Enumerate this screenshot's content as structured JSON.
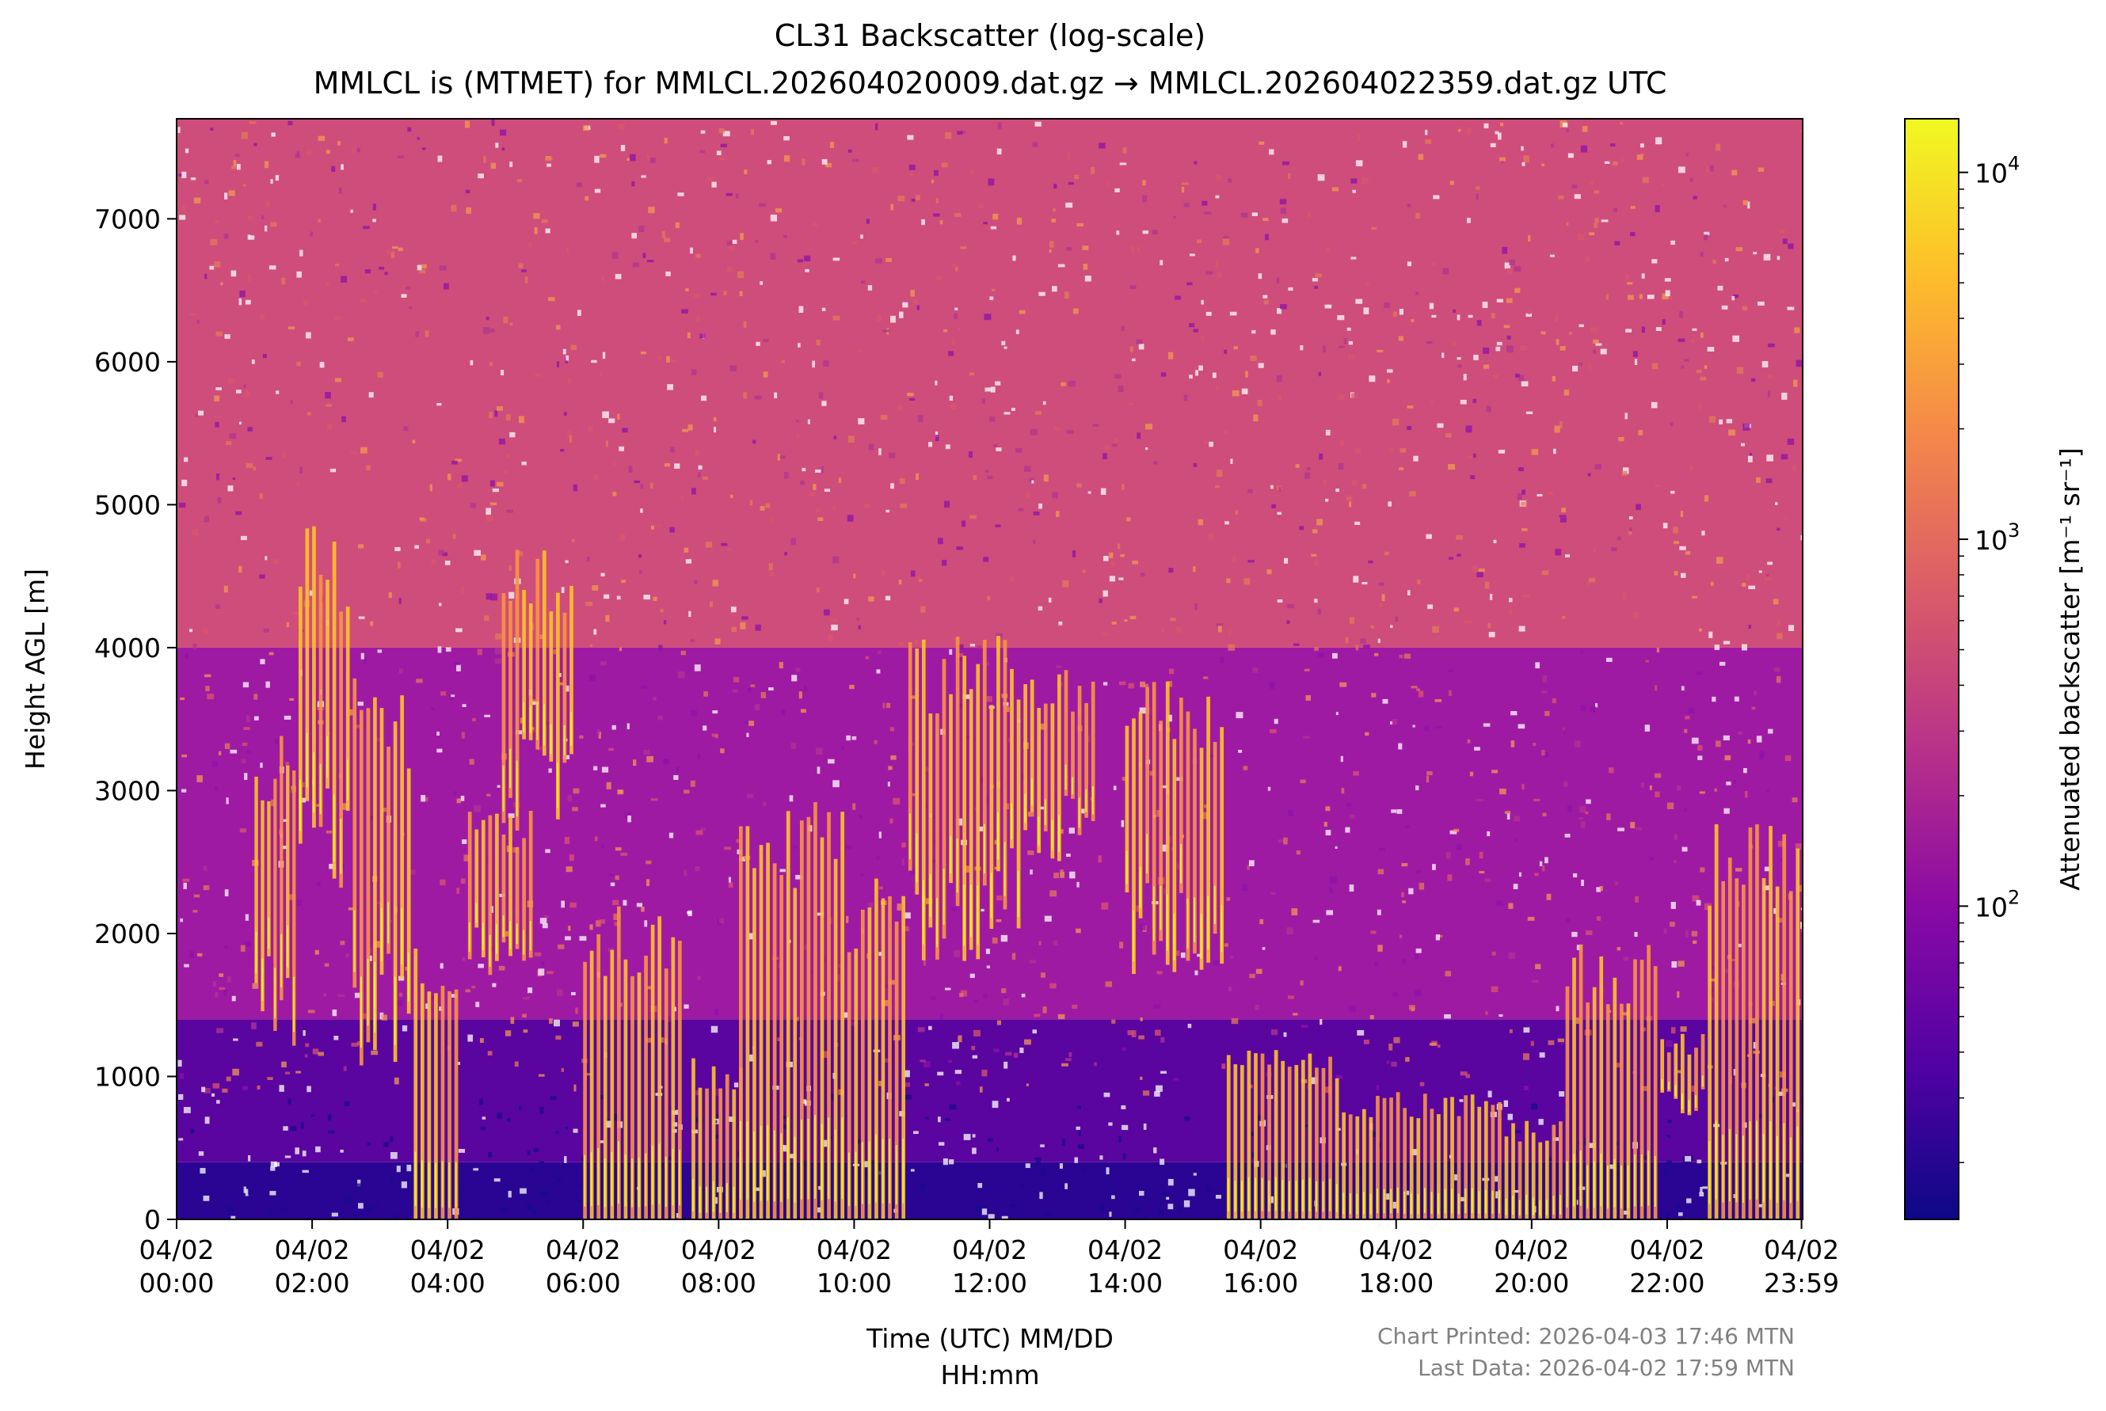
{
  "chart_data": {
    "type": "heatmap",
    "title": "CL31 Backscatter (log-scale)",
    "subtitle": "MMLCL is (MTMET) for MMLCL.202604020009.dat.gz → MMLCL.202604022359.dat.gz UTC",
    "xlabel_line1": "Time (UTC) MM/DD",
    "xlabel_line2": "HH:mm",
    "ylabel": "Height AGL [m]",
    "colorbar_label": "Attenuated backscatter [m⁻¹ sr⁻¹]",
    "colormap": "plasma",
    "colormap_stops": [
      "#0d0887",
      "#5302a3",
      "#8b0aa5",
      "#b83289",
      "#db5c68",
      "#f48849",
      "#febd2a",
      "#f0f921"
    ],
    "xlim_hours": [
      0,
      24
    ],
    "ylim": [
      0,
      7700
    ],
    "y_ticks": [
      {
        "value": 0,
        "label": "0"
      },
      {
        "value": 1000,
        "label": "1000"
      },
      {
        "value": 2000,
        "label": "2000"
      },
      {
        "value": 3000,
        "label": "3000"
      },
      {
        "value": 4000,
        "label": "4000"
      },
      {
        "value": 5000,
        "label": "5000"
      },
      {
        "value": 6000,
        "label": "6000"
      },
      {
        "value": 7000,
        "label": "7000"
      }
    ],
    "x_ticks": [
      {
        "hour": 0,
        "date": "04/02",
        "time": "00:00"
      },
      {
        "hour": 2,
        "date": "04/02",
        "time": "02:00"
      },
      {
        "hour": 4,
        "date": "04/02",
        "time": "04:00"
      },
      {
        "hour": 6,
        "date": "04/02",
        "time": "06:00"
      },
      {
        "hour": 8,
        "date": "04/02",
        "time": "08:00"
      },
      {
        "hour": 10,
        "date": "04/02",
        "time": "10:00"
      },
      {
        "hour": 12,
        "date": "04/02",
        "time": "12:00"
      },
      {
        "hour": 14,
        "date": "04/02",
        "time": "14:00"
      },
      {
        "hour": 16,
        "date": "04/02",
        "time": "16:00"
      },
      {
        "hour": 18,
        "date": "04/02",
        "time": "18:00"
      },
      {
        "hour": 20,
        "date": "04/02",
        "time": "20:00"
      },
      {
        "hour": 22,
        "date": "04/02",
        "time": "22:00"
      },
      {
        "hour": 23.983,
        "date": "04/02",
        "time": "23:59"
      }
    ],
    "colorbar_range": [
      14,
      14000
    ],
    "colorbar_ticks": [
      {
        "value": 100,
        "base": "10",
        "exp": "2"
      },
      {
        "value": 1000,
        "base": "10",
        "exp": "3"
      },
      {
        "value": 10000,
        "base": "10",
        "exp": "4"
      }
    ],
    "cloud_layers": [
      {
        "start": 1.15,
        "end": 1.8,
        "base": 1200,
        "top": 3400
      },
      {
        "start": 1.8,
        "end": 2.6,
        "base": 2300,
        "top": 4900
      },
      {
        "start": 2.6,
        "end": 3.5,
        "base": 1000,
        "top": 3800
      },
      {
        "start": 3.5,
        "end": 4.2,
        "base": 0,
        "top": 2000
      },
      {
        "start": 4.3,
        "end": 5.3,
        "base": 1700,
        "top": 2900
      },
      {
        "start": 4.8,
        "end": 5.9,
        "base": 2700,
        "top": 4700
      },
      {
        "start": 6.0,
        "end": 7.5,
        "base": 0,
        "top": 2200
      },
      {
        "start": 7.6,
        "end": 8.4,
        "base": 0,
        "top": 1200
      },
      {
        "start": 8.3,
        "end": 9.9,
        "base": 0,
        "top": 3000
      },
      {
        "start": 9.9,
        "end": 10.8,
        "base": 0,
        "top": 2400
      },
      {
        "start": 10.8,
        "end": 12.5,
        "base": 1800,
        "top": 4100
      },
      {
        "start": 12.5,
        "end": 13.6,
        "base": 2500,
        "top": 3900
      },
      {
        "start": 14.0,
        "end": 15.5,
        "base": 1700,
        "top": 3800
      },
      {
        "start": 15.5,
        "end": 17.2,
        "base": 0,
        "top": 1200
      },
      {
        "start": 17.2,
        "end": 19.6,
        "base": 0,
        "top": 900
      },
      {
        "start": 19.6,
        "end": 20.5,
        "base": 0,
        "top": 700
      },
      {
        "start": 20.5,
        "end": 21.9,
        "base": 0,
        "top": 2000
      },
      {
        "start": 21.9,
        "end": 22.6,
        "base": 700,
        "top": 1300
      },
      {
        "start": 22.6,
        "end": 24.0,
        "base": 0,
        "top": 2900
      }
    ],
    "footer_printed": "Chart Printed: 2026-04-03 17:46 MTN",
    "footer_last": "Last Data: 2026-04-02 17:59 MTN",
    "grid": false,
    "legend": "colorbar-right"
  }
}
